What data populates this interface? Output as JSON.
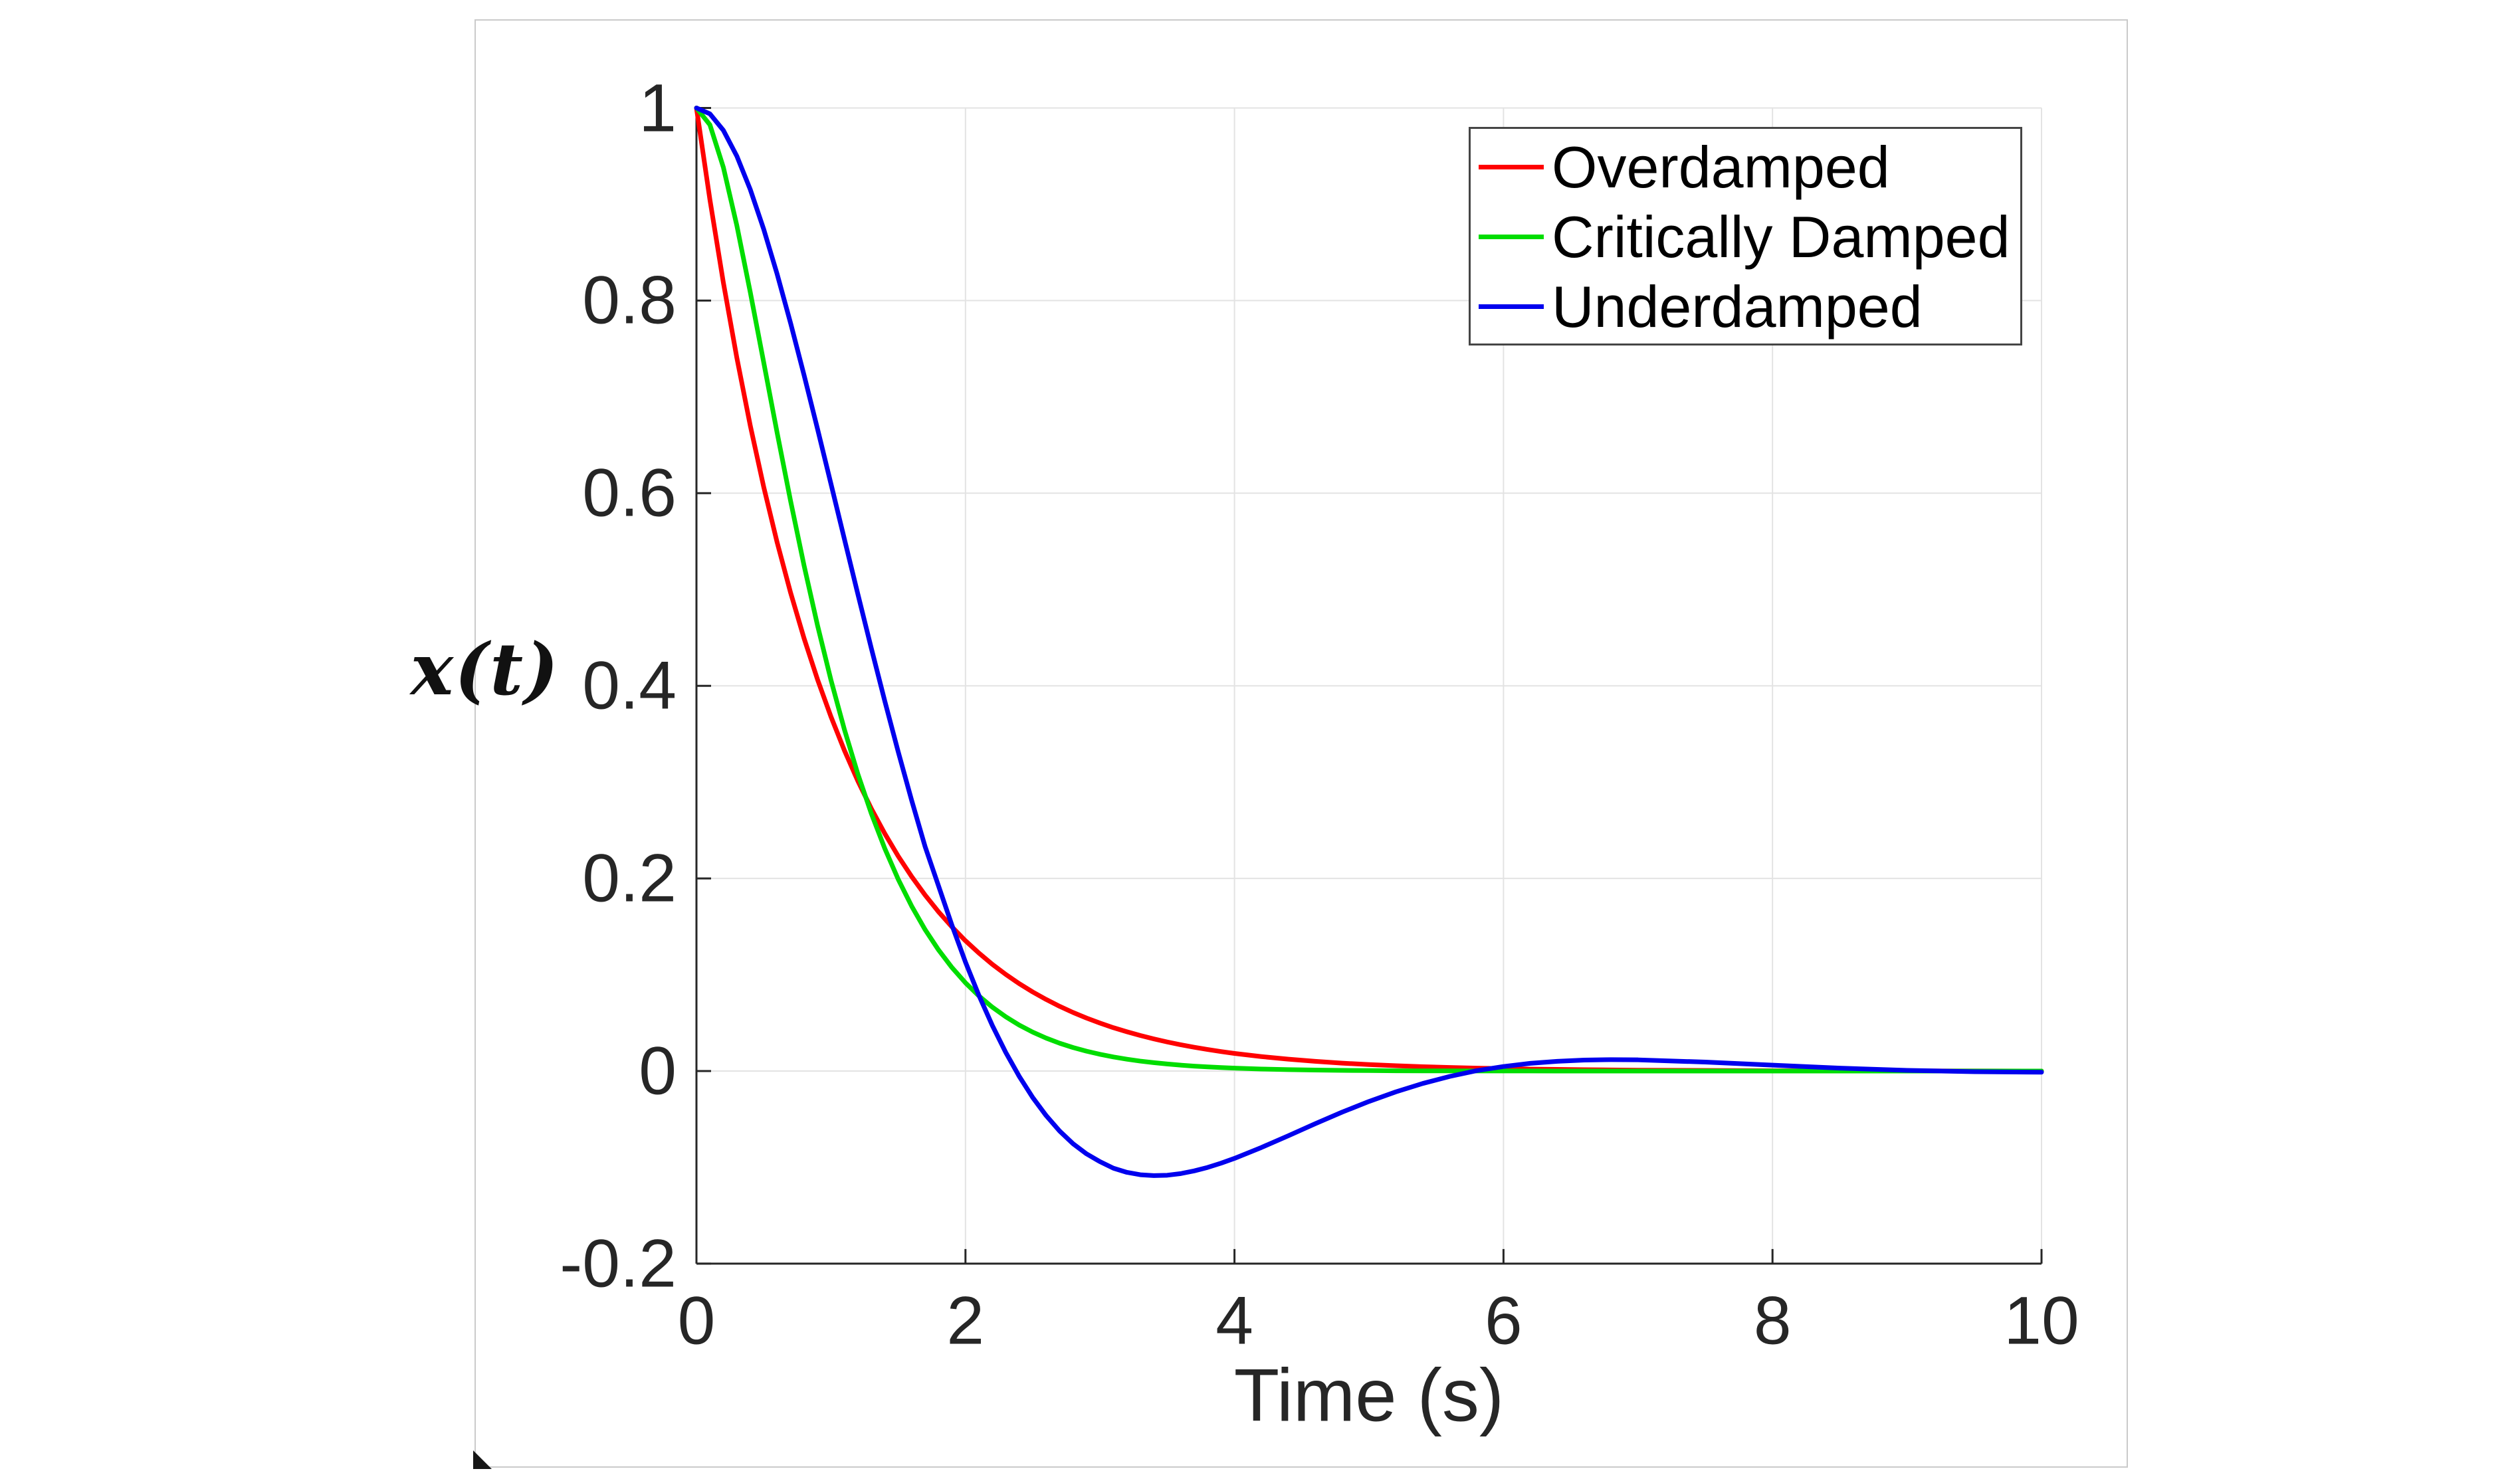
{
  "chart_data": {
    "type": "line",
    "title": "",
    "xlabel": "Time (s)",
    "ylabel": "x(t)",
    "xlim": [
      0,
      10
    ],
    "ylim": [
      -0.2,
      1
    ],
    "grid": true,
    "legend_position": "top-right",
    "axis_color": "#262626",
    "grid_color": "#e3e3e3",
    "x_tick_labels": [
      "0",
      "2",
      "4",
      "6",
      "8",
      "10"
    ],
    "x_tick_values": [
      0,
      2,
      4,
      6,
      8,
      10
    ],
    "y_tick_labels": [
      "1",
      "0.8",
      "0.6",
      "0.4",
      "0.2",
      "0",
      "-0.2"
    ],
    "y_tick_values": [
      1,
      0.8,
      0.6,
      0.4,
      0.2,
      0,
      -0.2
    ],
    "x": [
      0,
      0.1,
      0.2,
      0.3,
      0.4,
      0.5,
      0.6,
      0.7,
      0.8,
      0.9,
      1.0,
      1.1,
      1.2,
      1.3,
      1.4,
      1.5,
      1.6,
      1.7,
      1.8,
      1.9,
      2.0,
      2.1,
      2.2,
      2.3,
      2.4,
      2.5,
      2.6,
      2.7,
      2.8,
      2.9,
      3.0,
      3.1,
      3.2,
      3.3,
      3.4,
      3.5,
      3.6,
      3.7,
      3.8,
      3.9,
      4.0,
      4.2,
      4.4,
      4.6,
      4.8,
      5.0,
      5.2,
      5.4,
      5.6,
      5.8,
      6.0,
      6.2,
      6.4,
      6.6,
      6.8,
      7.0,
      7.5,
      8.0,
      8.5,
      9.0,
      9.5,
      10
    ],
    "series": [
      {
        "name": "Overdamped",
        "color": "#ff0000",
        "values": [
          1,
          0.9048,
          0.8187,
          0.7408,
          0.6703,
          0.6065,
          0.5488,
          0.4966,
          0.4493,
          0.4066,
          0.3679,
          0.3329,
          0.3012,
          0.2725,
          0.2466,
          0.2231,
          0.2019,
          0.1827,
          0.1653,
          0.1496,
          0.1353,
          0.1225,
          0.1108,
          0.1003,
          0.0907,
          0.0821,
          0.0743,
          0.0672,
          0.0608,
          0.055,
          0.0498,
          0.045,
          0.0408,
          0.0369,
          0.0334,
          0.0302,
          0.0273,
          0.0247,
          0.0224,
          0.0202,
          0.0183,
          0.015,
          0.0123,
          0.0101,
          0.0082,
          0.0067,
          0.0055,
          0.0045,
          0.0037,
          0.003,
          0.0025,
          0.002,
          0.0017,
          0.0014,
          0.0011,
          0.0009,
          0.0006,
          0.0003,
          0.0002,
          0.0001,
          0.0001,
          0
        ]
      },
      {
        "name": "Critically Damped",
        "color": "#00dd00",
        "values": [
          1,
          0.9825,
          0.9384,
          0.8781,
          0.8088,
          0.7358,
          0.6626,
          0.5918,
          0.5249,
          0.4628,
          0.406,
          0.3546,
          0.3084,
          0.2674,
          0.2311,
          0.1991,
          0.1712,
          0.1468,
          0.1257,
          0.1074,
          0.0916,
          0.078,
          0.0663,
          0.0563,
          0.0477,
          0.0404,
          0.0342,
          0.0289,
          0.0244,
          0.0206,
          0.0174,
          0.0146,
          0.0123,
          0.0103,
          0.0087,
          0.0073,
          0.0061,
          0.0051,
          0.0043,
          0.0036,
          0.003,
          0.0021,
          0.0015,
          0.001,
          0.0007,
          0.0005,
          0.0003,
          0.0002,
          0.0002,
          0.0001,
          0.0001,
          0.0001,
          0,
          0,
          0,
          0,
          0,
          0,
          0,
          0,
          0,
          0
        ]
      },
      {
        "name": "Underdamped",
        "color": "#0000ee",
        "values": [
          1,
          0.9939,
          0.9768,
          0.9501,
          0.9154,
          0.8741,
          0.8274,
          0.7765,
          0.7226,
          0.6668,
          0.6097,
          0.5523,
          0.4952,
          0.439,
          0.3843,
          0.3315,
          0.281,
          0.233,
          0.1921,
          0.1512,
          0.1131,
          0.0785,
          0.0472,
          0.0192,
          -0.0056,
          -0.0275,
          -0.0463,
          -0.0623,
          -0.0755,
          -0.086,
          -0.0941,
          -0.1009,
          -0.1052,
          -0.1077,
          -0.1086,
          -0.1082,
          -0.1065,
          -0.1037,
          -0.1001,
          -0.0957,
          -0.0907,
          -0.0794,
          -0.0672,
          -0.0547,
          -0.0427,
          -0.0316,
          -0.0216,
          -0.0129,
          -0.0056,
          0.0004,
          0.0047,
          0.008,
          0.0101,
          0.0114,
          0.0118,
          0.0116,
          0.0093,
          0.0061,
          0.003,
          0.0007,
          -0.0007,
          -0.0012
        ]
      }
    ]
  }
}
